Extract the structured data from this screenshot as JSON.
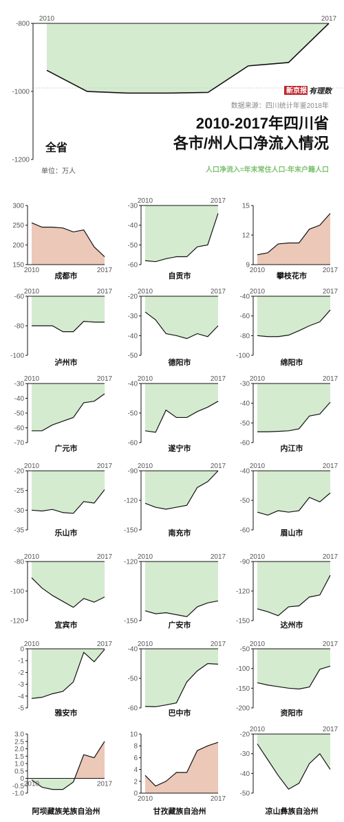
{
  "header": {
    "title_line1": "2010-2017年四川省",
    "title_line2": "各市/州人口净流入情况",
    "source": "数据来源：四川统计年鉴2018年",
    "unit": "单位：万人",
    "definition": "人口净流入=年末常住人口-年末户籍人口",
    "logo_box": "新京报",
    "logo_text": "有理数"
  },
  "colors": {
    "negative_fill": "#d4ebcf",
    "positive_fill": "#ecc8b8",
    "line": "#111111",
    "definition": "#7cbf6e"
  },
  "chart_data": [
    {
      "type": "area",
      "name": "全省",
      "label": "全省",
      "x": [
        2010,
        2011,
        2012,
        2013,
        2014,
        2015,
        2016,
        2017
      ],
      "values": [
        -938,
        -1000,
        -1005,
        -1005,
        -1003,
        -925,
        -915,
        -800
      ],
      "ylim": [
        -1200,
        -800
      ],
      "yticks": [
        -800,
        -1000,
        -1200
      ],
      "xticks": [
        "2010",
        "2017"
      ],
      "ref_line": -990
    },
    {
      "type": "area",
      "label": "成都市",
      "x": [
        2010,
        2011,
        2012,
        2013,
        2014,
        2015,
        2016,
        2017
      ],
      "values": [
        256,
        245,
        245,
        243,
        233,
        238,
        195,
        170
      ],
      "ylim": [
        150,
        300
      ],
      "yticks": [
        300,
        250,
        200,
        150
      ],
      "xticks": [
        "2010",
        "2017"
      ]
    },
    {
      "type": "area",
      "label": "自贡市",
      "x": [
        2010,
        2011,
        2012,
        2013,
        2014,
        2015,
        2016,
        2017
      ],
      "values": [
        -58,
        -58.5,
        -57,
        -56,
        -56,
        -51,
        -50,
        -34
      ],
      "ylim": [
        -60,
        -30
      ],
      "yticks": [
        -30,
        -40,
        -50,
        -60
      ],
      "xticks": [
        "2010",
        "2017"
      ]
    },
    {
      "type": "area",
      "label": "攀枝花市",
      "x": [
        2010,
        2011,
        2012,
        2013,
        2014,
        2015,
        2016,
        2017
      ],
      "values": [
        10,
        10.2,
        11.1,
        11.2,
        11.2,
        12.6,
        13,
        14.2
      ],
      "ylim": [
        9,
        15
      ],
      "yticks": [
        15,
        12,
        9
      ],
      "xticks": [
        "2010",
        "2017"
      ]
    },
    {
      "type": "area",
      "label": "泸州市",
      "x": [
        2010,
        2011,
        2012,
        2013,
        2014,
        2015,
        2016,
        2017
      ],
      "values": [
        -80,
        -80,
        -80,
        -84,
        -84,
        -77,
        -77.5,
        -77.5
      ],
      "ylim": [
        -100,
        -60
      ],
      "yticks": [
        -60,
        -80,
        -100
      ],
      "xticks": [
        "2010",
        "2017"
      ]
    },
    {
      "type": "area",
      "label": "德阳市",
      "x": [
        2010,
        2011,
        2012,
        2013,
        2014,
        2015,
        2016,
        2017
      ],
      "values": [
        -28,
        -32,
        -39,
        -40,
        -41.5,
        -39,
        -40.5,
        -35
      ],
      "ylim": [
        -50,
        -20
      ],
      "yticks": [
        -20,
        -30,
        -40,
        -50
      ],
      "xticks": [
        "2010",
        "2017"
      ]
    },
    {
      "type": "area",
      "label": "绵阳市",
      "x": [
        2010,
        2011,
        2012,
        2013,
        2014,
        2015,
        2016,
        2017
      ],
      "values": [
        -80,
        -81,
        -81,
        -79.5,
        -75,
        -70,
        -66,
        -54
      ],
      "ylim": [
        -100,
        -40
      ],
      "yticks": [
        -40,
        -60,
        -80,
        -100
      ],
      "xticks": [
        "2010",
        "2017"
      ]
    },
    {
      "type": "area",
      "label": "广元市",
      "x": [
        2010,
        2011,
        2012,
        2013,
        2014,
        2015,
        2016,
        2017
      ],
      "values": [
        -62,
        -62,
        -58,
        -55.5,
        -53,
        -43,
        -42,
        -37
      ],
      "ylim": [
        -70,
        -30
      ],
      "yticks": [
        -30,
        -40,
        -50,
        -60,
        -70
      ],
      "xticks": [
        "2010",
        "2017"
      ]
    },
    {
      "type": "area",
      "label": "遂宁市",
      "x": [
        2010,
        2011,
        2012,
        2013,
        2014,
        2015,
        2016,
        2017
      ],
      "values": [
        -56,
        -56.5,
        -49,
        -51.5,
        -51.5,
        -49.5,
        -48,
        -46
      ],
      "ylim": [
        -60,
        -40
      ],
      "yticks": [
        -40,
        -50,
        -60
      ],
      "xticks": [
        "2010",
        "2017"
      ]
    },
    {
      "type": "area",
      "label": "内江市",
      "x": [
        2010,
        2011,
        2012,
        2013,
        2014,
        2015,
        2016,
        2017
      ],
      "values": [
        -54.5,
        -54.5,
        -54.3,
        -54,
        -53,
        -46.5,
        -45.5,
        -39.5
      ],
      "ylim": [
        -60,
        -30
      ],
      "yticks": [
        -30,
        -40,
        -50,
        -60
      ],
      "xticks": [
        "2010",
        "2017"
      ]
    },
    {
      "type": "area",
      "label": "乐山市",
      "x": [
        2010,
        2011,
        2012,
        2013,
        2014,
        2015,
        2016,
        2017
      ],
      "values": [
        -30,
        -30.2,
        -29.8,
        -30.6,
        -30.8,
        -27.8,
        -28.2,
        -24.8
      ],
      "ylim": [
        -35,
        -20
      ],
      "yticks": [
        -20,
        -25,
        -30,
        -35
      ],
      "xticks": [
        "2010",
        "2017"
      ]
    },
    {
      "type": "area",
      "label": "南充市",
      "x": [
        2010,
        2011,
        2012,
        2013,
        2014,
        2015,
        2016,
        2017
      ],
      "values": [
        -123,
        -127,
        -129,
        -127,
        -125,
        -107,
        -101,
        -90
      ],
      "ylim": [
        -150,
        -90
      ],
      "yticks": [
        -90,
        -120,
        -150
      ],
      "xticks": [
        "2010",
        "2017"
      ]
    },
    {
      "type": "area",
      "label": "眉山市",
      "x": [
        2010,
        2011,
        2012,
        2013,
        2014,
        2015,
        2016,
        2017
      ],
      "values": [
        -54,
        -55,
        -53.5,
        -54,
        -53.5,
        -49,
        -50.5,
        -47.5
      ],
      "ylim": [
        -60,
        -40
      ],
      "yticks": [
        -40,
        -50,
        -60
      ],
      "xticks": [
        "2010",
        "2017"
      ]
    },
    {
      "type": "area",
      "label": "宜宾市",
      "x": [
        2010,
        2011,
        2012,
        2013,
        2014,
        2015,
        2016,
        2017
      ],
      "values": [
        -91,
        -98,
        -103,
        -107,
        -111,
        -105,
        -107.5,
        -104
      ],
      "ylim": [
        -120,
        -80
      ],
      "yticks": [
        -80,
        -100,
        -120
      ],
      "xticks": [
        "2010",
        "2017"
      ]
    },
    {
      "type": "area",
      "label": "广安市",
      "x": [
        2010,
        2011,
        2012,
        2013,
        2014,
        2015,
        2016,
        2017
      ],
      "values": [
        -145,
        -146.5,
        -146,
        -147,
        -148,
        -143,
        -141,
        -140
      ],
      "ylim": [
        -150,
        -120
      ],
      "yticks": [
        -120,
        -150
      ],
      "xticks": [
        "2010",
        "2017"
      ]
    },
    {
      "type": "area",
      "label": "达州市",
      "x": [
        2010,
        2011,
        2012,
        2013,
        2014,
        2015,
        2016,
        2017
      ],
      "values": [
        -138,
        -141,
        -145,
        -136,
        -135,
        -126,
        -124,
        -104
      ],
      "ylim": [
        -150,
        -90
      ],
      "yticks": [
        -90,
        -120,
        -150
      ],
      "xticks": [
        "2010",
        "2017"
      ]
    },
    {
      "type": "area",
      "label": "雅安市",
      "x": [
        2010,
        2011,
        2012,
        2013,
        2014,
        2015,
        2016,
        2017
      ],
      "values": [
        -4.2,
        -4.1,
        -3.8,
        -3.6,
        -2.8,
        -0.3,
        -1.1,
        -0.05
      ],
      "ylim": [
        -5,
        0
      ],
      "yticks": [
        0,
        -1,
        -2,
        -3,
        -4,
        -5
      ],
      "xticks": [
        "2010",
        "2017"
      ]
    },
    {
      "type": "area",
      "label": "巴中市",
      "x": [
        2010,
        2011,
        2012,
        2013,
        2014,
        2015,
        2016,
        2017
      ],
      "values": [
        -59.5,
        -59.6,
        -59,
        -58.3,
        -51.2,
        -47.5,
        -45,
        -45.2
      ],
      "ylim": [
        -60,
        -40
      ],
      "yticks": [
        -40,
        -50,
        -60
      ],
      "xticks": [
        "2010",
        "2017"
      ]
    },
    {
      "type": "area",
      "label": "资阳市",
      "x": [
        2010,
        2011,
        2012,
        2013,
        2014,
        2015,
        2016,
        2017
      ],
      "values": [
        -136,
        -142,
        -146,
        -150,
        -152,
        -147,
        -102,
        -94
      ],
      "ylim": [
        -200,
        -50
      ],
      "yticks": [
        -50,
        -100,
        -150,
        -200
      ],
      "xticks": [
        "2010",
        "2017"
      ]
    },
    {
      "type": "area",
      "label": "阿坝藏族羌族自治州",
      "x": [
        2010,
        2011,
        2012,
        2013,
        2014,
        2015,
        2016,
        2017
      ],
      "values": [
        -0.1,
        -0.6,
        -0.75,
        -0.75,
        -0.25,
        1.6,
        1.4,
        2.5
      ],
      "ylim": [
        -1,
        3
      ],
      "yticks": [
        3,
        2.5,
        2,
        1.5,
        1,
        0.5,
        0,
        -0.5,
        -1
      ],
      "ytick_labels": [
        "3.0",
        "2.5",
        "2.0",
        "1.5",
        "1.0",
        "0.5",
        "0",
        "-0.5",
        "-1.0"
      ],
      "xticks": [
        "2010",
        "2017"
      ],
      "xaxis_at_zero": true
    },
    {
      "type": "area",
      "label": "甘孜藏族自治州",
      "x": [
        2010,
        2011,
        2012,
        2013,
        2014,
        2015,
        2016,
        2017
      ],
      "values": [
        3,
        1.2,
        2,
        3.5,
        3.5,
        7.2,
        8,
        8.6
      ],
      "ylim": [
        0,
        10
      ],
      "yticks": [
        10,
        8,
        6,
        4,
        2,
        0
      ],
      "xticks": [
        "2010",
        "2017"
      ]
    },
    {
      "type": "area",
      "label": "凉山彝族自治州",
      "x": [
        2010,
        2011,
        2012,
        2013,
        2014,
        2015,
        2016,
        2017
      ],
      "values": [
        -25,
        -33,
        -41,
        -48,
        -45,
        -35,
        -30,
        -38
      ],
      "ylim": [
        -50,
        -20
      ],
      "yticks": [
        -20,
        -30,
        -40,
        -50
      ],
      "xticks": [
        "2010",
        "2017"
      ]
    }
  ]
}
